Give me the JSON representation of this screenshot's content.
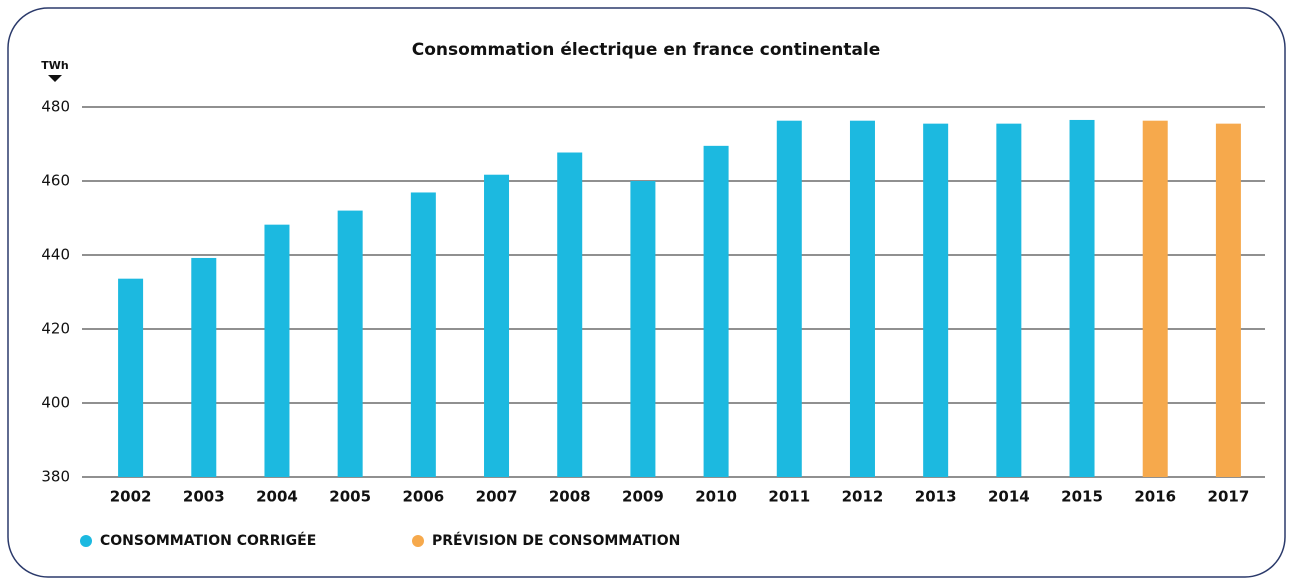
{
  "chart_data": {
    "type": "bar",
    "title": "Consommation électrique en france continentale",
    "ylabel": "TWh",
    "categories": [
      "2002",
      "2003",
      "2004",
      "2005",
      "2006",
      "2007",
      "2008",
      "2009",
      "2010",
      "2011",
      "2012",
      "2013",
      "2014",
      "2015",
      "2016",
      "2017"
    ],
    "series": [
      {
        "name": "CONSOMMATION CORRIGÉE",
        "color": "#1cb9e0",
        "values": [
          433.6,
          439.2,
          448.2,
          452,
          456.9,
          461.7,
          467.7,
          460,
          469.5,
          476.3,
          476.3,
          475.5,
          475.5,
          476.5,
          null,
          null
        ]
      },
      {
        "name": "PRÉVISION DE CONSOMMATION",
        "color": "#f6a94c",
        "values": [
          null,
          null,
          null,
          null,
          null,
          null,
          null,
          null,
          null,
          null,
          null,
          null,
          null,
          null,
          476.3,
          475.5
        ]
      }
    ],
    "ylim": [
      380,
      480
    ],
    "yticks": [
      380,
      400,
      420,
      440,
      460,
      480
    ],
    "grid": true
  }
}
